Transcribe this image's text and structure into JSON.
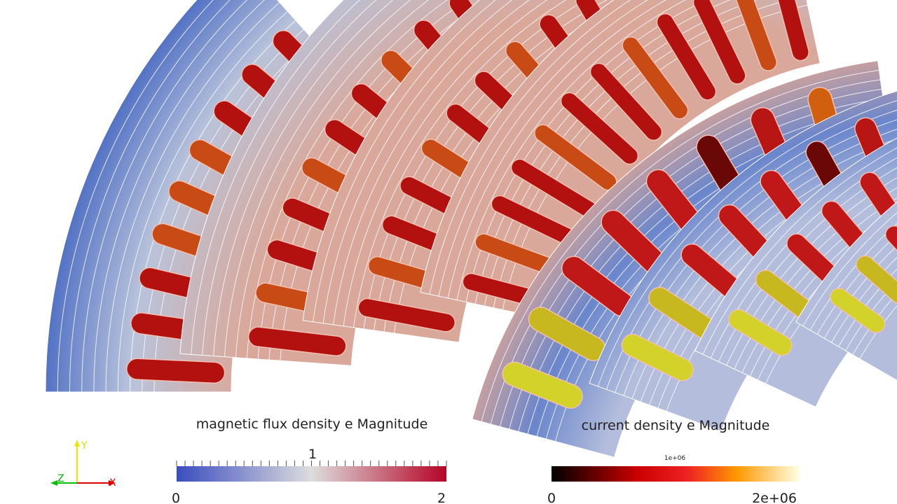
{
  "colorbars": [
    {
      "title": "magnetic flux density e Magnitude",
      "labels": [
        "0",
        "1",
        "2"
      ]
    },
    {
      "title": "current density e Magnitude",
      "labels": [
        "0",
        "1e+06",
        "2e+06"
      ]
    }
  ],
  "axes": {
    "labels": [
      "Y",
      "Z",
      "X"
    ]
  }
}
